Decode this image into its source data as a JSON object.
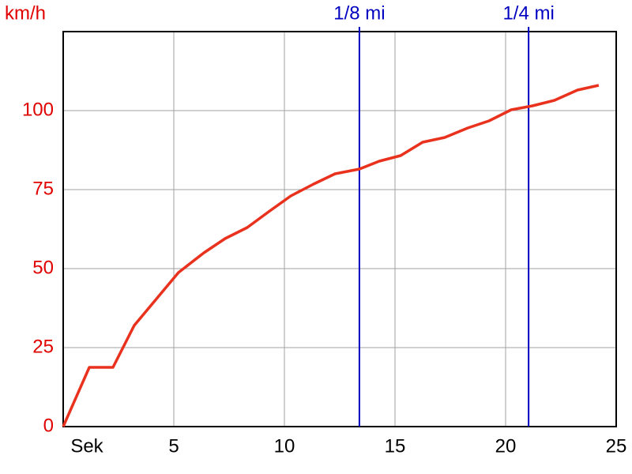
{
  "chart_data": {
    "type": "line",
    "y_unit_label": "km/h",
    "x": [
      0,
      1.18,
      2.25,
      3.21,
      5.21,
      6.36,
      7.32,
      8.32,
      9.29,
      10.29,
      11.32,
      12.29,
      13.39,
      14.29,
      15.25,
      16.25,
      17.25,
      18.29,
      19.25,
      20.25,
      21.21,
      22.21,
      23.25,
      24.21
    ],
    "series": [
      {
        "color": "#e8321e",
        "values": [
          0,
          18.75,
          18.75,
          32,
          48.75,
          55,
          59.5,
          63,
          68,
          73,
          76.75,
          80,
          81.5,
          84,
          85.75,
          90,
          91.5,
          94.5,
          96.75,
          100.25,
          101.5,
          103.25,
          106.5,
          108
        ]
      }
    ],
    "xlim": [
      0,
      25
    ],
    "ylim": [
      0,
      125
    ],
    "xticks": [
      {
        "value": 0,
        "label": "Sek"
      },
      5,
      10,
      15,
      20,
      25
    ],
    "yticks": [
      0,
      25,
      50,
      75,
      100
    ],
    "grid": true,
    "y_label_color": "#e00000",
    "marker_color": "#0000c0",
    "markers": [
      {
        "label": "1/8 mi",
        "x": 13.39
      },
      {
        "label": "1/4 mi",
        "x": 21.04
      }
    ]
  }
}
